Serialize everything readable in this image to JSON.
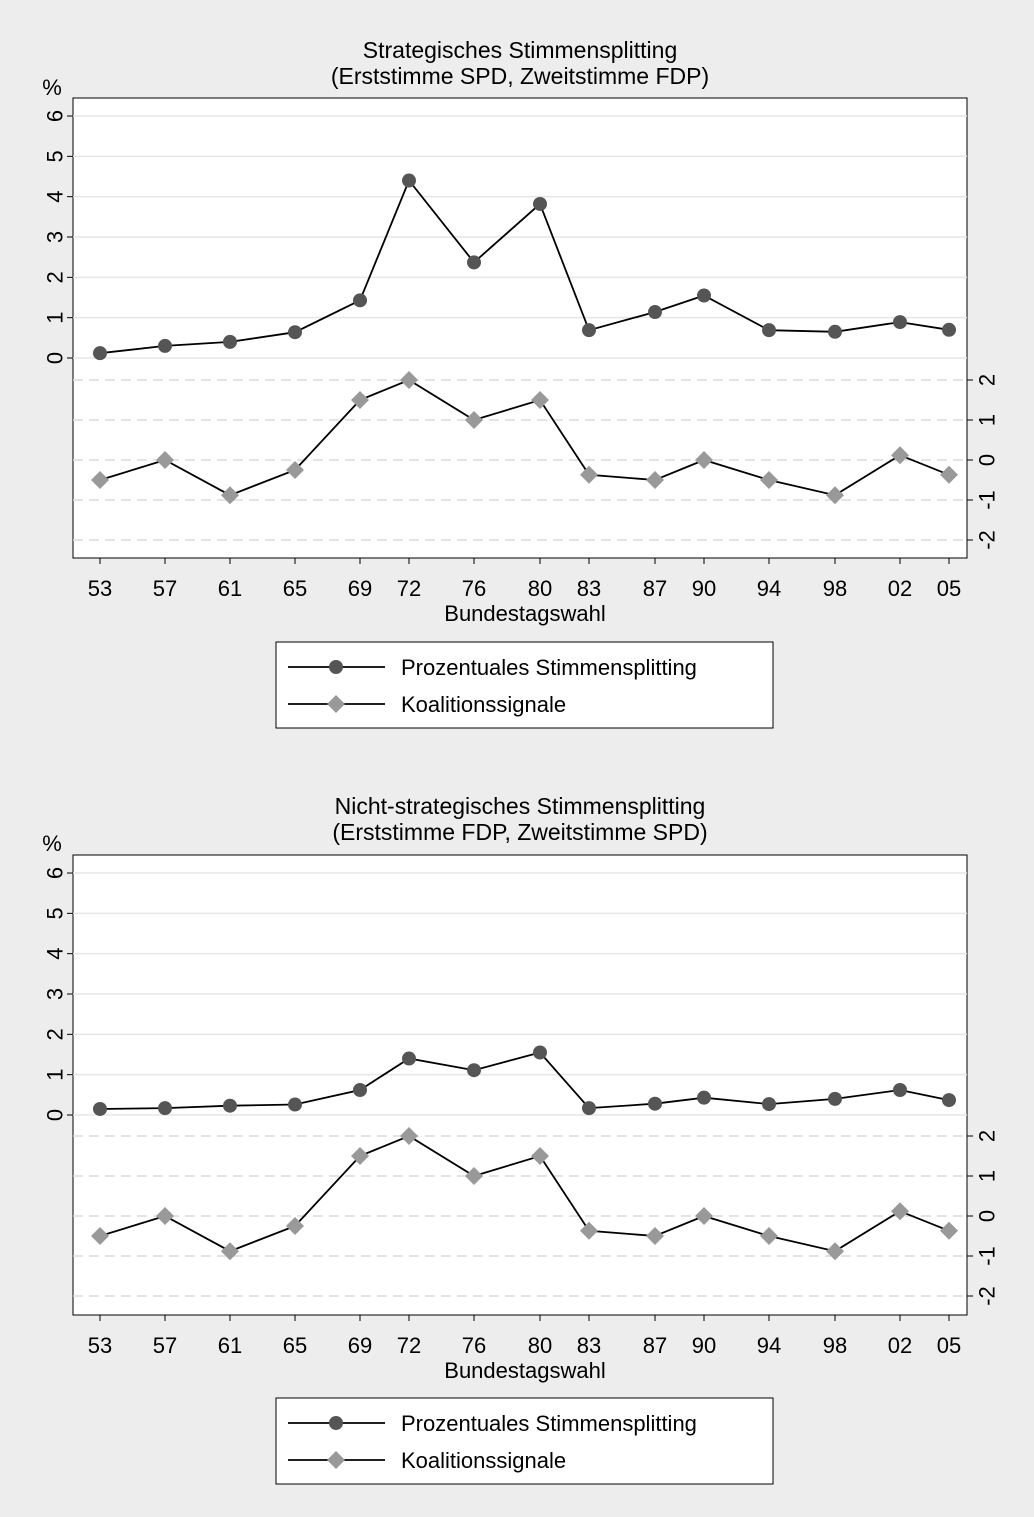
{
  "chart_data": [
    {
      "type": "line",
      "title": "Strategisches Stimmensplitting",
      "subtitle": "(Erststimme SPD, Zweitstimme FDP)",
      "ylabel_left": "%",
      "xlabel": "Bundestagswahl",
      "categories": [
        "53",
        "57",
        "61",
        "65",
        "69",
        "72",
        "76",
        "80",
        "83",
        "87",
        "90",
        "94",
        "98",
        "02",
        "05"
      ],
      "y_left_ticks": [
        "0",
        "1",
        "2",
        "3",
        "4",
        "5",
        "6"
      ],
      "y_left_range": [
        0,
        6.3
      ],
      "y_right_ticks": [
        "2",
        "1",
        "0",
        "-1",
        "-2"
      ],
      "y_right_range": [
        -2,
        2
      ],
      "series": [
        {
          "name": "Prozentuales Stimmensplitting",
          "axis": "left",
          "color": "#555555",
          "marker": "circle",
          "values": [
            0.12,
            0.3,
            0.4,
            0.64,
            1.43,
            4.4,
            2.37,
            3.82,
            0.69,
            1.14,
            1.55,
            0.69,
            0.65,
            0.89,
            0.7
          ]
        },
        {
          "name": "Koalitionssignale",
          "axis": "right",
          "color": "#999999",
          "marker": "diamond",
          "values": [
            -0.5,
            0,
            -0.88,
            -0.25,
            1.5,
            2,
            1,
            1.5,
            -0.37,
            -0.5,
            0,
            -0.5,
            -0.88,
            0.12,
            -0.37
          ]
        }
      ],
      "legend": {
        "placement": "bottom"
      }
    },
    {
      "type": "line",
      "title": "Nicht-strategisches Stimmensplitting",
      "subtitle": "(Erststimme FDP, Zweitstimme SPD)",
      "ylabel_left": "%",
      "xlabel": "Bundestagswahl",
      "categories": [
        "53",
        "57",
        "61",
        "65",
        "69",
        "72",
        "76",
        "80",
        "83",
        "87",
        "90",
        "94",
        "98",
        "02",
        "05"
      ],
      "y_left_ticks": [
        "0",
        "1",
        "2",
        "3",
        "4",
        "5",
        "6"
      ],
      "y_left_range": [
        0,
        6.3
      ],
      "y_right_ticks": [
        "2",
        "1",
        "0",
        "-1",
        "-2"
      ],
      "y_right_range": [
        -2,
        2
      ],
      "series": [
        {
          "name": "Prozentuales Stimmensplitting",
          "axis": "left",
          "color": "#555555",
          "marker": "circle",
          "values": [
            0.15,
            0.17,
            0.23,
            0.26,
            0.62,
            1.4,
            1.11,
            1.55,
            0.17,
            0.28,
            0.43,
            0.27,
            0.4,
            0.62,
            0.37
          ]
        },
        {
          "name": "Koalitionssignale",
          "axis": "right",
          "color": "#999999",
          "marker": "diamond",
          "values": [
            -0.5,
            0,
            -0.88,
            -0.25,
            1.5,
            2,
            1,
            1.5,
            -0.37,
            -0.5,
            0,
            -0.5,
            -0.88,
            0.12,
            -0.37
          ]
        }
      ],
      "legend": {
        "placement": "bottom"
      }
    }
  ]
}
